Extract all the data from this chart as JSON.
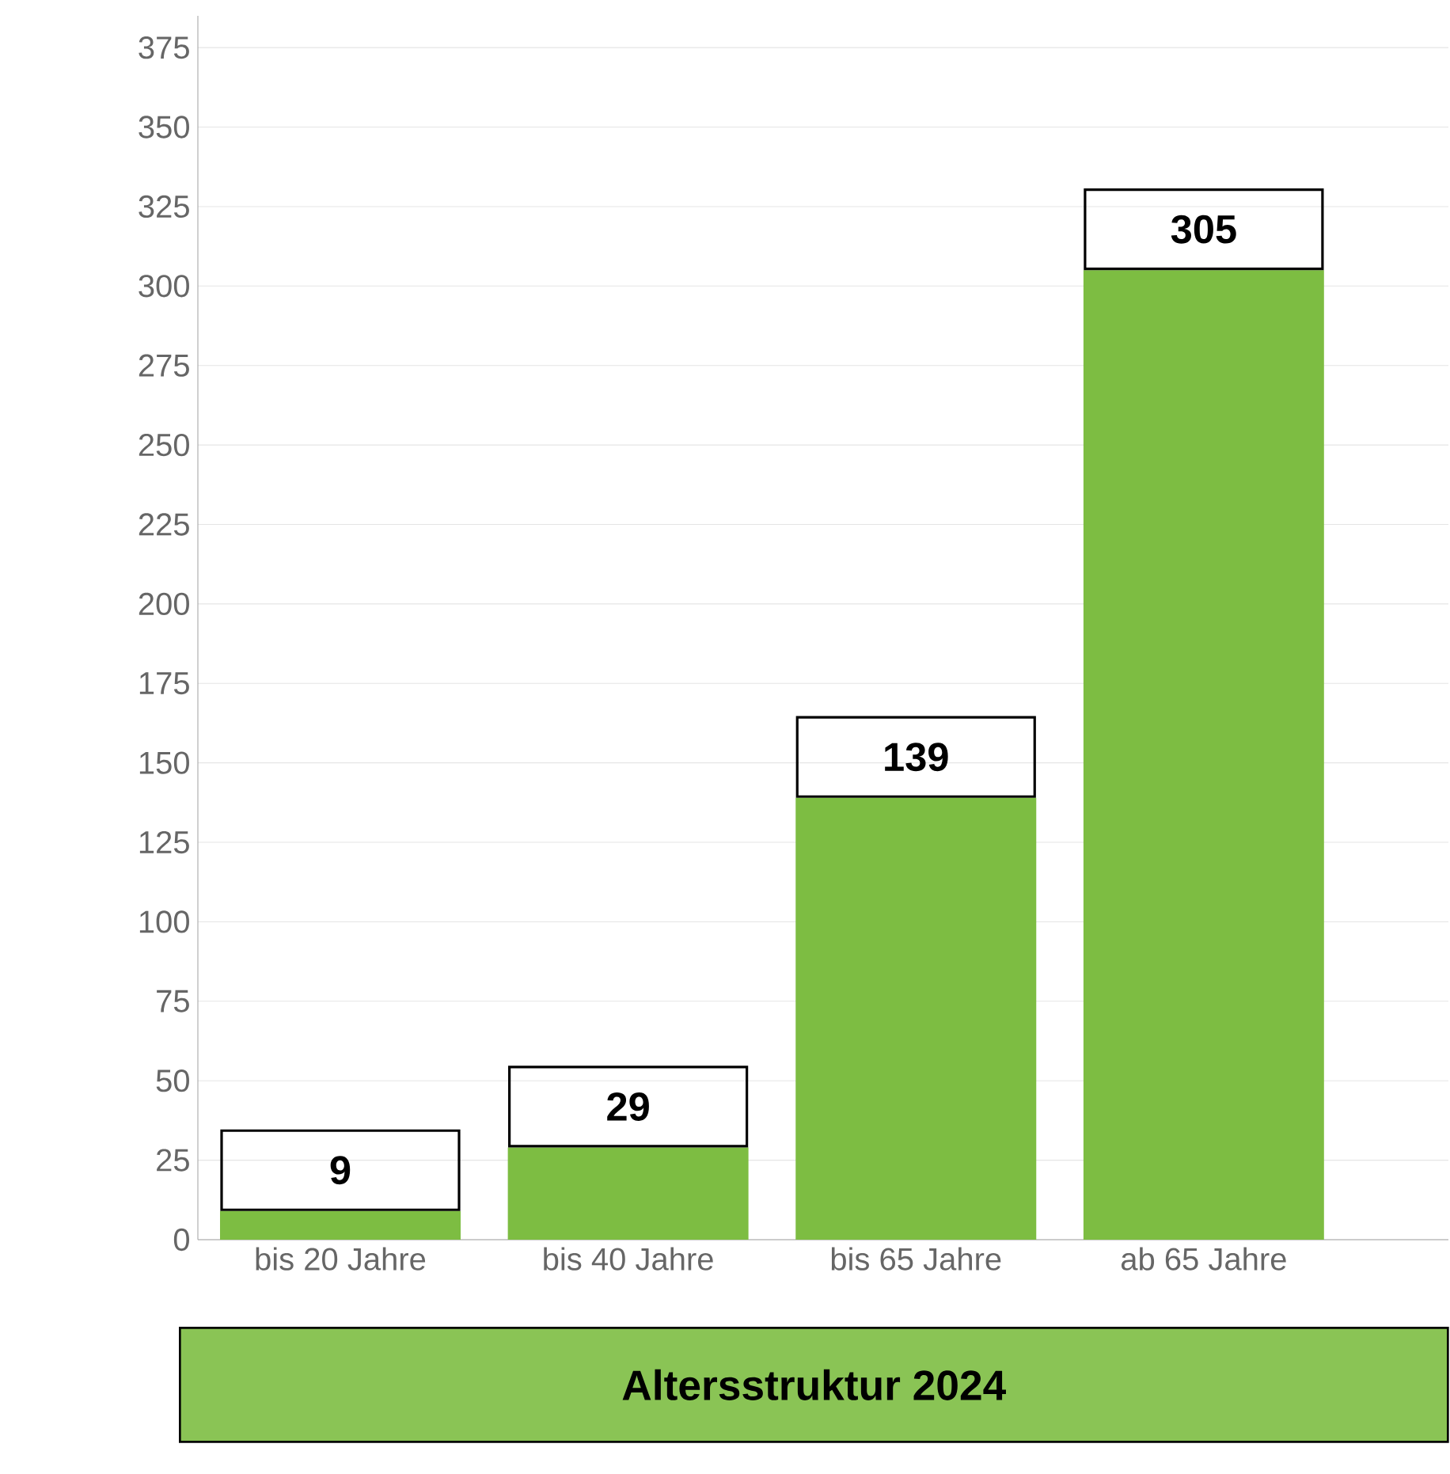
{
  "chart_data": {
    "type": "bar",
    "title": "Altersstruktur 2024",
    "categories": [
      "bis 20 Jahre",
      "bis 40 Jahre",
      "bis 65 Jahre",
      "ab 65 Jahre"
    ],
    "values": [
      9,
      29,
      139,
      305
    ],
    "color": "#7dbd42",
    "data_labels": true,
    "ylim": [
      0,
      385
    ],
    "yticks": [
      0,
      25,
      50,
      75,
      100,
      125,
      150,
      175,
      200,
      225,
      250,
      275,
      300,
      325,
      350,
      375
    ],
    "grid": "y"
  }
}
